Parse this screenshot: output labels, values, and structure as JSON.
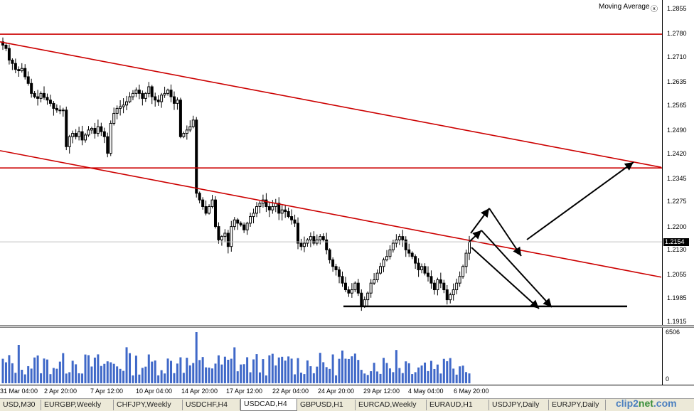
{
  "indicator": {
    "label": "Moving Average",
    "close_icon": "close-circle-icon"
  },
  "price_axis": {
    "ticks": [
      "1.2855",
      "1.2780",
      "1.2710",
      "1.2635",
      "1.2565",
      "1.2490",
      "1.2420",
      "1.2345",
      "1.2275",
      "1.2200",
      "1.2130",
      "1.2055",
      "1.1985",
      "1.1915"
    ],
    "current_price": "1.2154"
  },
  "volume_axis": {
    "max_label": "6506",
    "min_label": "0"
  },
  "time_axis": [
    "31 Mar 04:00",
    "2 Apr 20:00",
    "7 Apr 12:00",
    "10 Apr 04:00",
    "14 Apr 20:00",
    "17 Apr 12:00",
    "22 Apr 04:00",
    "24 Apr 20:00",
    "29 Apr 12:00",
    "4 May 04:00",
    "6 May 20:00"
  ],
  "tabs": [
    {
      "label": "USD,M30",
      "active": false
    },
    {
      "label": "EURGBP,Weekly",
      "active": false
    },
    {
      "label": "CHFJPY,Weekly",
      "active": false
    },
    {
      "label": "USDCHF,H4",
      "active": false
    },
    {
      "label": "USDCAD,H4",
      "active": true
    },
    {
      "label": "GBPUSD,H1",
      "active": false
    },
    {
      "label": "EURCAD,Weekly",
      "active": false
    },
    {
      "label": "EURAUD,H1",
      "active": false
    },
    {
      "label": "USDJPY,Daily",
      "active": false
    },
    {
      "label": "EURJPY,Daily",
      "active": false
    }
  ],
  "watermark": {
    "part1": "clip",
    "part2": "2",
    "part3": "net",
    "part4": ".com"
  },
  "colors": {
    "trendline": "#cc0000",
    "candle": "#000000",
    "volume": "#3f68c8",
    "arrow": "#000000"
  },
  "chart_data": {
    "type": "candlestick",
    "symbol": "USDCAD,H4",
    "ylim": [
      1.1915,
      1.2855
    ],
    "closes": [
      1.2745,
      1.2735,
      1.27,
      1.269,
      1.2672,
      1.2668,
      1.2675,
      1.265,
      1.263,
      1.26,
      1.259,
      1.2585,
      1.26,
      1.2588,
      1.258,
      1.257,
      1.2555,
      1.255,
      1.2548,
      1.255,
      1.244,
      1.247,
      1.248,
      1.247,
      1.2485,
      1.246,
      1.2475,
      1.249,
      1.2495,
      1.248,
      1.25,
      1.2485,
      1.247,
      1.242,
      1.251,
      1.254,
      1.2555,
      1.256,
      1.2565,
      1.2575,
      1.259,
      1.26,
      1.261,
      1.26,
      1.2585,
      1.26,
      1.262,
      1.259,
      1.258,
      1.2575,
      1.2595,
      1.26,
      1.261,
      1.259,
      1.257,
      1.258,
      1.247,
      1.248,
      1.249,
      1.25,
      1.252,
      1.23,
      1.228,
      1.226,
      1.224,
      1.226,
      1.228,
      1.22,
      1.216,
      1.217,
      1.218,
      1.214,
      1.22,
      1.222,
      1.221,
      1.2205,
      1.219,
      1.221,
      1.223,
      1.224,
      1.226,
      1.227,
      1.228,
      1.226,
      1.225,
      1.226,
      1.227,
      1.224,
      1.225,
      1.2245,
      1.223,
      1.222,
      1.221,
      1.215,
      1.214,
      1.215,
      1.216,
      1.217,
      1.215,
      1.216,
      1.217,
      1.216,
      1.213,
      1.21,
      1.208,
      1.207,
      1.205,
      1.203,
      1.201,
      1.2,
      1.201,
      1.203,
      1.2,
      1.196,
      1.198,
      1.2,
      1.203,
      1.204,
      1.206,
      1.208,
      1.21,
      1.211,
      1.213,
      1.215,
      1.216,
      1.217,
      1.216,
      1.213,
      1.212,
      1.211,
      1.209,
      1.207,
      1.208,
      1.206,
      1.205,
      1.203,
      1.201,
      1.204,
      1.203,
      1.201,
      1.198,
      1.1995,
      1.201,
      1.203,
      1.205,
      1.208,
      1.212,
      1.2154
    ],
    "volume_max": 6506,
    "overlays": {
      "horizontal_levels": [
        1.2778,
        1.2376
      ],
      "support_line": 1.196,
      "channel_upper": {
        "from": [
          0,
          1.2755
        ],
        "to": [
          930,
          1.2378
        ]
      },
      "channel_lower": {
        "from": [
          0,
          1.2428
        ],
        "to": [
          930,
          1.2048
        ]
      }
    }
  }
}
